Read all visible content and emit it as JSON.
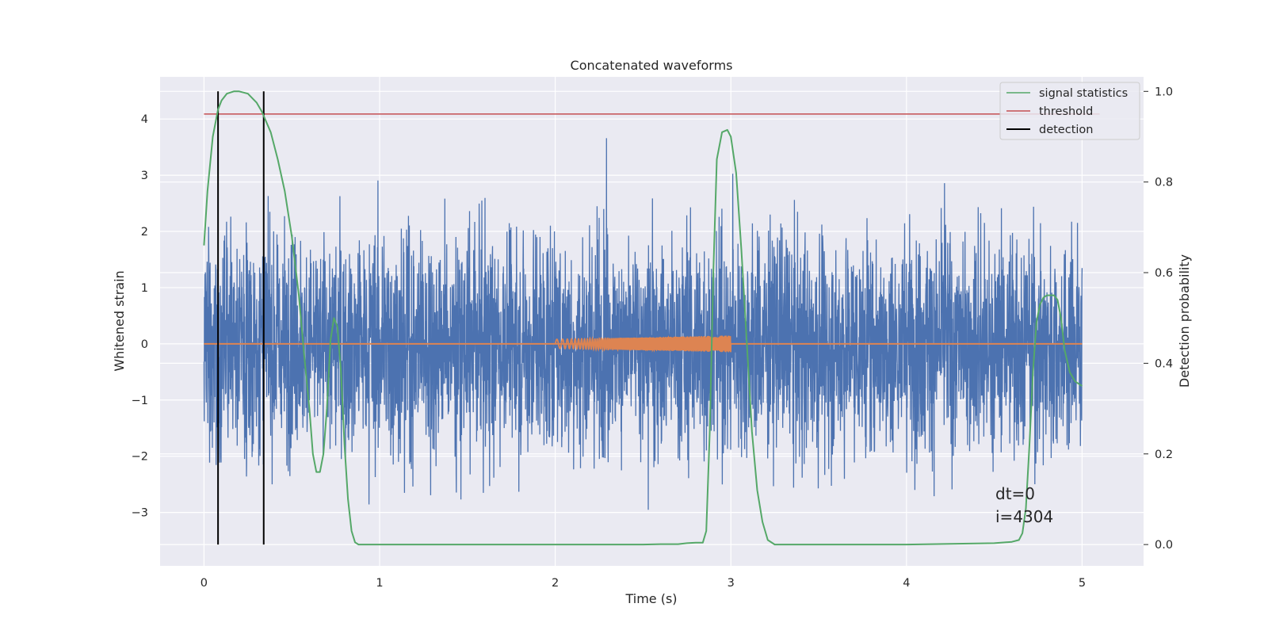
{
  "chart_data": {
    "type": "line",
    "title": "Concatenated waveforms",
    "xlabel": "Time (s)",
    "ylabel": "Whitened strain",
    "ylabel_right": "Detection probability",
    "xlim": [
      -0.25,
      5.35
    ],
    "ylim": [
      -3.95,
      4.75
    ],
    "ylim_right": [
      -0.047,
      1.032
    ],
    "x_ticks": [
      "0",
      "1",
      "2",
      "3",
      "4",
      "5"
    ],
    "y_ticks": [
      "−3",
      "−2",
      "−1",
      "0",
      "1",
      "2",
      "3",
      "4"
    ],
    "y_right_ticks": [
      "0.0",
      "0.2",
      "0.4",
      "0.6",
      "0.8",
      "1.0"
    ],
    "grid": true,
    "legend_position": "top-right",
    "legend": [
      "signal statistics",
      "threshold",
      "detection"
    ],
    "series": [
      {
        "name": "strain",
        "axis": "left",
        "color": "#4c72b0",
        "note": "whitened strain noise, amplitude roughly within -3.2 to 4.1 over 0-5 s"
      },
      {
        "name": "injected waveform",
        "axis": "left",
        "color": "#dd8452",
        "x_range": [
          2.0,
          3.0
        ],
        "amplitude_start": 0.08,
        "amplitude_end": 0.15,
        "baseline": 0
      },
      {
        "name": "signal statistics",
        "axis": "right",
        "color": "#55a868",
        "x": [
          0.0,
          0.02,
          0.05,
          0.08,
          0.1,
          0.13,
          0.17,
          0.2,
          0.25,
          0.3,
          0.33,
          0.38,
          0.42,
          0.46,
          0.5,
          0.54,
          0.57,
          0.6,
          0.62,
          0.64,
          0.66,
          0.68,
          0.7,
          0.72,
          0.74,
          0.76,
          0.78,
          0.8,
          0.82,
          0.84,
          0.86,
          0.88,
          0.9,
          1.0,
          1.5,
          2.0,
          2.5,
          2.6,
          2.7,
          2.75,
          2.8,
          2.84,
          2.86,
          2.88,
          2.9,
          2.92,
          2.95,
          2.98,
          3.0,
          3.03,
          3.06,
          3.09,
          3.12,
          3.15,
          3.18,
          3.21,
          3.25,
          3.5,
          4.0,
          4.5,
          4.6,
          4.64,
          4.66,
          4.68,
          4.7,
          4.72,
          4.74,
          4.76,
          4.78,
          4.8,
          4.82,
          4.84,
          4.86,
          4.88,
          4.9,
          4.93,
          4.96,
          5.0
        ],
        "y": [
          0.66,
          0.78,
          0.9,
          0.96,
          0.98,
          0.995,
          1.0,
          1.0,
          0.995,
          0.975,
          0.955,
          0.91,
          0.85,
          0.78,
          0.68,
          0.55,
          0.42,
          0.3,
          0.2,
          0.16,
          0.16,
          0.2,
          0.3,
          0.45,
          0.5,
          0.48,
          0.38,
          0.22,
          0.1,
          0.03,
          0.005,
          0.0,
          0.0,
          0.0,
          0.0,
          0.0,
          0.0,
          0.001,
          0.001,
          0.003,
          0.004,
          0.004,
          0.03,
          0.25,
          0.6,
          0.85,
          0.91,
          0.915,
          0.9,
          0.82,
          0.65,
          0.45,
          0.25,
          0.12,
          0.05,
          0.01,
          0.0,
          0.0,
          0.0,
          0.003,
          0.006,
          0.01,
          0.025,
          0.08,
          0.22,
          0.38,
          0.49,
          0.53,
          0.545,
          0.55,
          0.55,
          0.55,
          0.54,
          0.5,
          0.43,
          0.38,
          0.36,
          0.35
        ]
      },
      {
        "name": "threshold",
        "axis": "right",
        "color": "#c44e52",
        "x": [
          0.0,
          5.1
        ],
        "y": [
          0.95,
          0.95
        ]
      }
    ],
    "detections": {
      "name": "detection",
      "color": "#000000",
      "x": [
        0.08,
        0.34
      ]
    },
    "annotations": [
      "dt=0",
      "i=4304"
    ]
  }
}
